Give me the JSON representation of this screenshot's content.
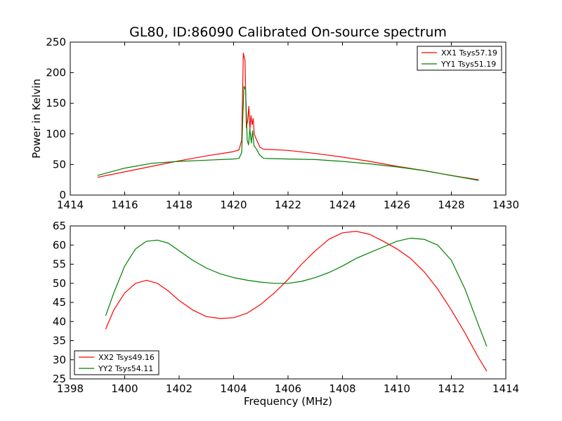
{
  "figure": {
    "title": "GL80, ID:86090 Calibrated On-source spectrum",
    "xlabel": "Frequency (MHz)",
    "ylabel": "Power in Kelvin"
  },
  "chart_data": [
    {
      "type": "line",
      "title": "GL80, ID:86090 Calibrated On-source spectrum",
      "xlabel": "",
      "ylabel": "Power in Kelvin",
      "xlim": [
        1414,
        1430
      ],
      "ylim": [
        0,
        250
      ],
      "xticks": [
        1414,
        1416,
        1418,
        1420,
        1422,
        1424,
        1426,
        1428,
        1430
      ],
      "yticks": [
        0,
        50,
        100,
        150,
        200,
        250
      ],
      "grid": false,
      "legend_position": "top-right",
      "series": [
        {
          "name": "XX1 Tsys57.19",
          "color": "#ff0000",
          "x": [
            1415.0,
            1416.0,
            1417.0,
            1418.0,
            1419.0,
            1420.0,
            1420.2,
            1420.3,
            1420.33,
            1420.36,
            1420.42,
            1420.47,
            1420.52,
            1420.56,
            1420.6,
            1420.64,
            1420.68,
            1420.72,
            1420.76,
            1420.8,
            1420.85,
            1420.9,
            1420.97,
            1421.1,
            1422.0,
            1423.0,
            1424.0,
            1425.0,
            1426.0,
            1427.0,
            1428.0,
            1429.0
          ],
          "y": [
            29,
            38,
            47,
            56,
            64,
            71,
            74,
            90,
            165,
            232,
            220,
            110,
            122,
            145,
            108,
            130,
            115,
            125,
            100,
            95,
            90,
            85,
            78,
            75,
            73,
            68,
            62,
            55,
            47,
            40,
            32,
            25
          ]
        },
        {
          "name": "YY1 Tsys51.19",
          "color": "#008000",
          "x": [
            1415.0,
            1416.0,
            1417.0,
            1418.0,
            1419.0,
            1420.0,
            1420.2,
            1420.3,
            1420.34,
            1420.38,
            1420.44,
            1420.5,
            1420.55,
            1420.6,
            1420.65,
            1420.7,
            1420.75,
            1420.8,
            1420.88,
            1420.95,
            1421.1,
            1422.0,
            1423.0,
            1424.0,
            1425.0,
            1426.0,
            1427.0,
            1428.0,
            1429.0
          ],
          "y": [
            32,
            44,
            52,
            55,
            57,
            59,
            60,
            70,
            130,
            178,
            172,
            90,
            82,
            108,
            85,
            105,
            80,
            78,
            72,
            66,
            60,
            59,
            58,
            55,
            51,
            46,
            40,
            32,
            24
          ]
        }
      ]
    },
    {
      "type": "line",
      "title": "",
      "xlabel": "Frequency (MHz)",
      "ylabel": "",
      "xlim": [
        1398,
        1414
      ],
      "ylim": [
        25,
        65
      ],
      "xticks": [
        1398,
        1400,
        1402,
        1404,
        1406,
        1408,
        1410,
        1412,
        1414
      ],
      "yticks": [
        25,
        30,
        35,
        40,
        45,
        50,
        55,
        60,
        65
      ],
      "grid": false,
      "legend_position": "bottom-left",
      "series": [
        {
          "name": "XX2 Tsys49.16",
          "color": "#ff0000",
          "x": [
            1399.3,
            1399.6,
            1400.0,
            1400.4,
            1400.8,
            1401.2,
            1401.6,
            1402.0,
            1402.5,
            1403.0,
            1403.5,
            1404.0,
            1404.5,
            1405.0,
            1405.5,
            1406.0,
            1406.5,
            1407.0,
            1407.5,
            1408.0,
            1408.5,
            1409.0,
            1409.5,
            1410.0,
            1410.5,
            1411.0,
            1411.5,
            1412.0,
            1412.5,
            1413.0,
            1413.3
          ],
          "y": [
            38,
            43,
            47.5,
            50,
            50.8,
            50,
            48,
            45.5,
            43,
            41.3,
            40.8,
            41,
            42.2,
            44.5,
            47.5,
            51,
            55,
            58.5,
            61.5,
            63.2,
            63.6,
            62.8,
            61,
            59,
            56.5,
            53,
            48.5,
            43,
            37,
            30.5,
            27
          ]
        },
        {
          "name": "YY2 Tsys54.11",
          "color": "#008000",
          "x": [
            1399.3,
            1399.6,
            1400.0,
            1400.4,
            1400.8,
            1401.2,
            1401.6,
            1402.0,
            1402.5,
            1403.0,
            1403.5,
            1404.0,
            1404.5,
            1405.0,
            1405.5,
            1406.0,
            1406.5,
            1407.0,
            1407.5,
            1408.0,
            1408.5,
            1409.0,
            1409.5,
            1410.0,
            1410.5,
            1411.0,
            1411.5,
            1412.0,
            1412.5,
            1413.0,
            1413.3
          ],
          "y": [
            41.5,
            47.5,
            54.5,
            59,
            61,
            61.3,
            60.5,
            58.5,
            56,
            54,
            52.5,
            51.5,
            50.8,
            50.3,
            50,
            50,
            50.5,
            51.5,
            52.8,
            54.5,
            56.5,
            58,
            59.5,
            61,
            61.8,
            61.5,
            60,
            56,
            48.5,
            39,
            33.5
          ]
        }
      ]
    }
  ]
}
